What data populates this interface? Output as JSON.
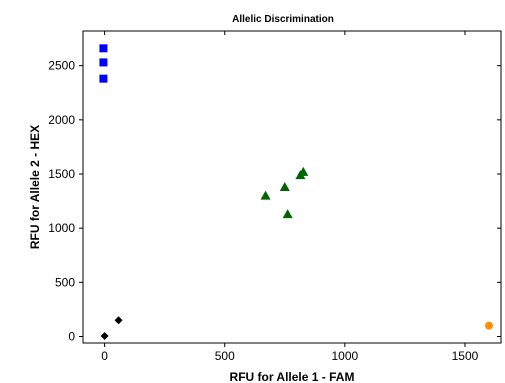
{
  "chart_data": {
    "type": "scatter",
    "title": "Allelic Discrimination",
    "xlabel": "RFU for Allele 1 - FAM",
    "ylabel": "RFU for Allele 2 - HEX",
    "xlim": [
      -90,
      1650
    ],
    "ylim": [
      -60,
      2820
    ],
    "xticks": [
      0,
      500,
      1000,
      1500
    ],
    "yticks": [
      0,
      500,
      1000,
      1500,
      2000,
      2500
    ],
    "grid": false,
    "series": [
      {
        "marker": "square",
        "color": "#0000ff",
        "points": [
          [
            -5,
            2660
          ],
          [
            -5,
            2530
          ],
          [
            -5,
            2380
          ]
        ]
      },
      {
        "marker": "triangle",
        "color": "#006400",
        "points": [
          [
            670,
            1300
          ],
          [
            750,
            1380
          ],
          [
            762,
            1130
          ],
          [
            815,
            1490
          ],
          [
            827,
            1520
          ]
        ]
      },
      {
        "marker": "diamond",
        "color": "#000000",
        "points": [
          [
            0,
            5
          ],
          [
            58,
            150
          ]
        ]
      },
      {
        "marker": "circle",
        "color": "#ff8c00",
        "points": [
          [
            1600,
            100
          ]
        ]
      }
    ]
  }
}
